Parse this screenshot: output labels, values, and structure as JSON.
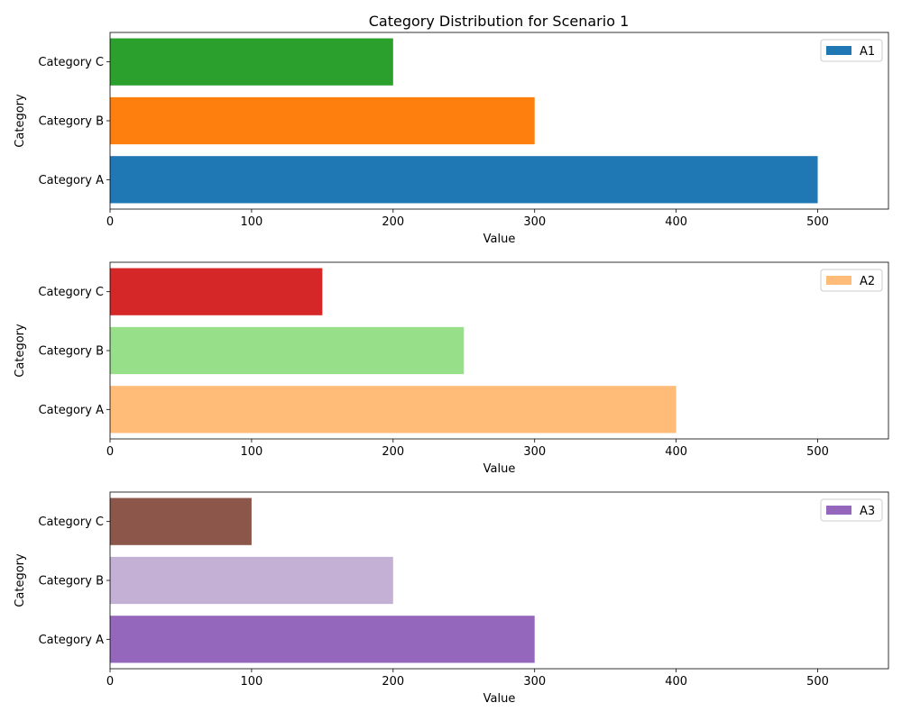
{
  "chart_data": {
    "title": "Category Distribution for Scenario 1",
    "type": "bar",
    "orientation": "horizontal",
    "xlim": [
      0,
      550
    ],
    "xticks": [
      0,
      100,
      200,
      300,
      400,
      500
    ],
    "grid": false,
    "legend_position": "top-right",
    "subplots": [
      {
        "xlabel": "Value",
        "ylabel": "Category",
        "legend": {
          "label": "A1",
          "color": "#1f77b4"
        },
        "categories": [
          "Category A",
          "Category B",
          "Category C"
        ],
        "values": [
          500,
          300,
          200
        ],
        "colors": [
          "#1f77b4",
          "#ff7f0e",
          "#2ca02c"
        ]
      },
      {
        "xlabel": "Value",
        "ylabel": "Category",
        "legend": {
          "label": "A2",
          "color": "#ffbb78"
        },
        "categories": [
          "Category A",
          "Category B",
          "Category C"
        ],
        "values": [
          400,
          250,
          150
        ],
        "colors": [
          "#ffbb78",
          "#98df8a",
          "#d62728"
        ]
      },
      {
        "xlabel": "Value",
        "ylabel": "Category",
        "legend": {
          "label": "A3",
          "color": "#9467bd"
        },
        "categories": [
          "Category A",
          "Category B",
          "Category C"
        ],
        "values": [
          300,
          200,
          100
        ],
        "colors": [
          "#9467bd",
          "#c5b0d5",
          "#8c564b"
        ]
      }
    ]
  }
}
